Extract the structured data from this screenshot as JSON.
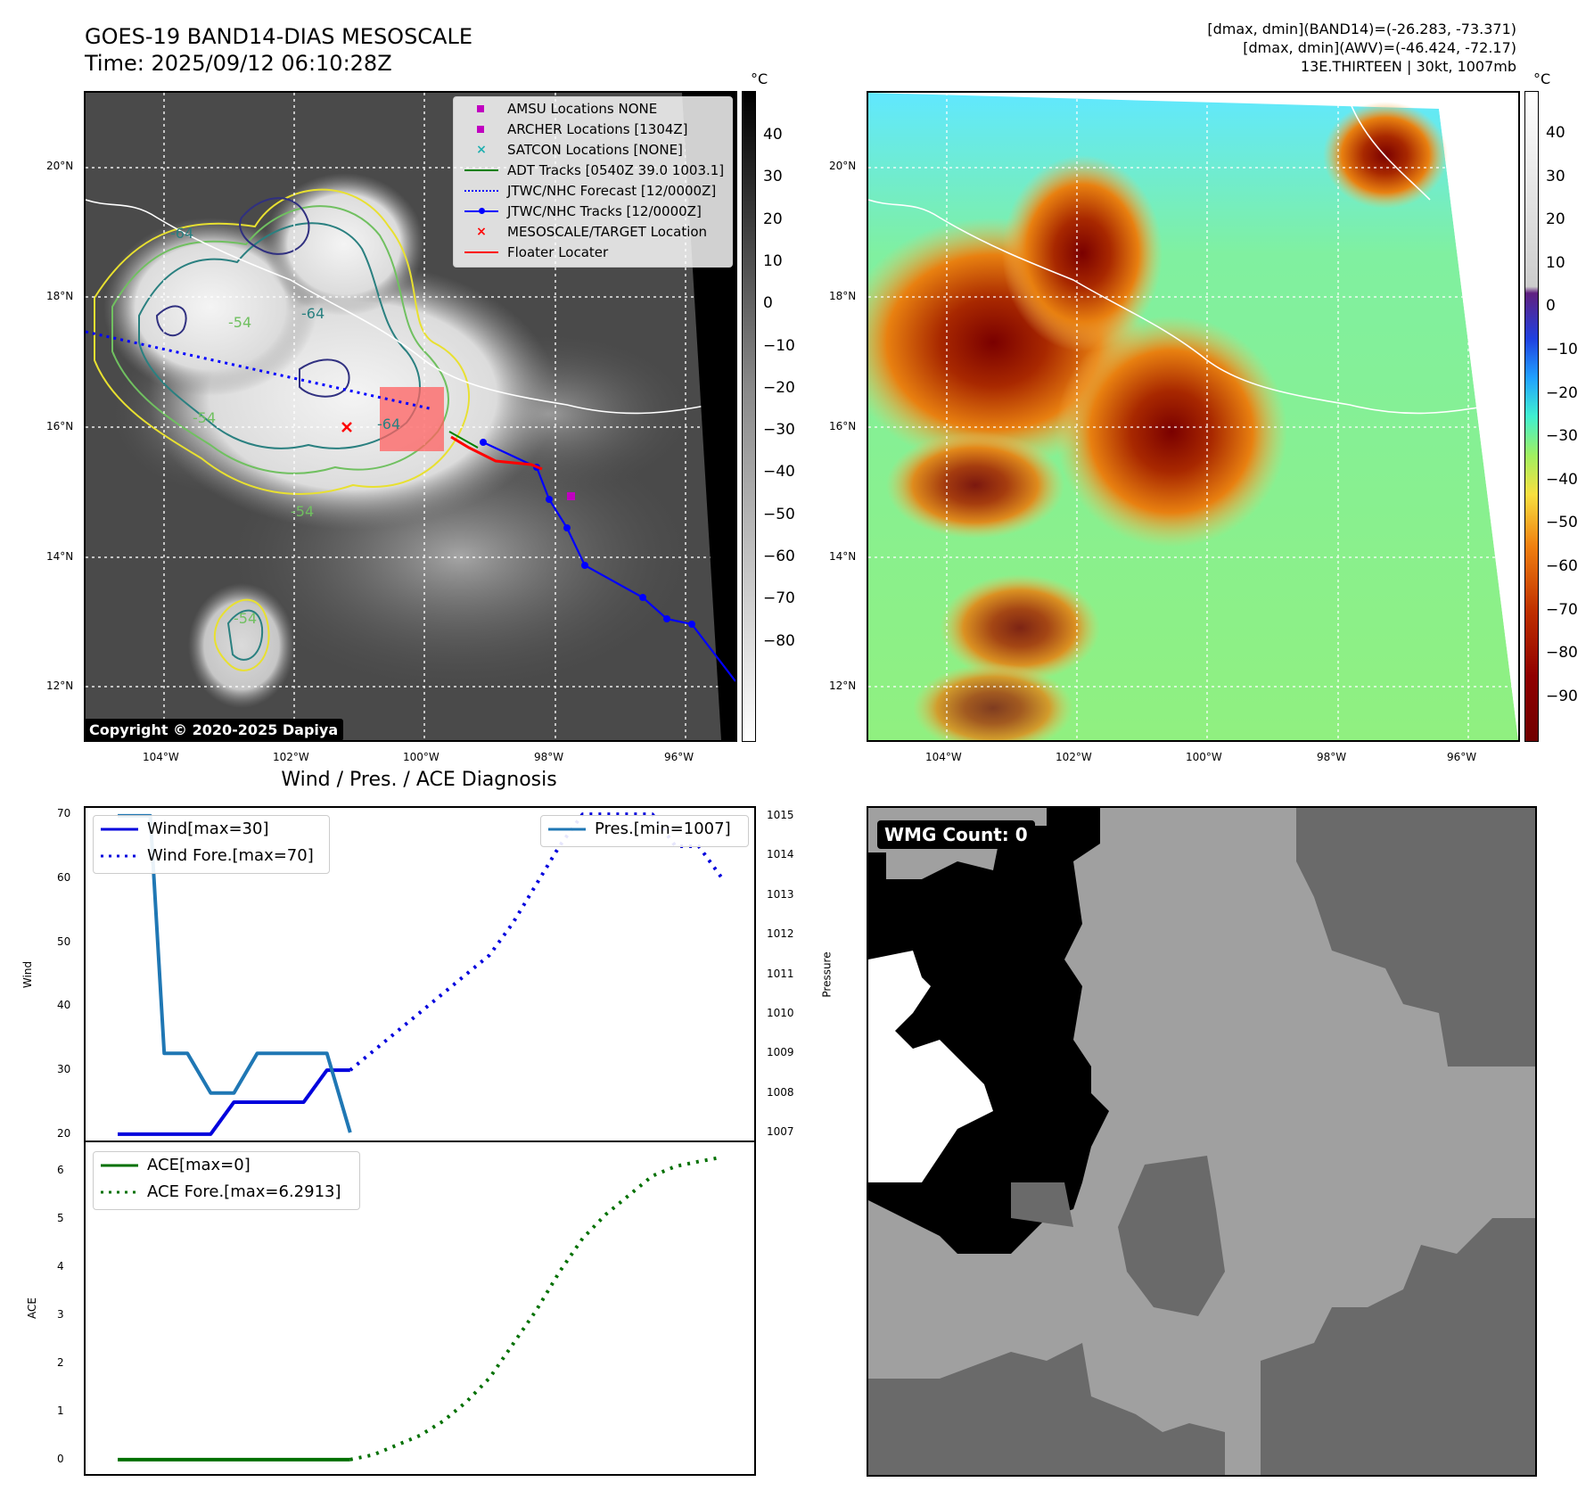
{
  "title": {
    "line1": "GOES-19 BAND14-DIAS MESOSCALE",
    "line2": "Time: 2025/09/12 06:10:28Z"
  },
  "info": {
    "line1": "[dmax, dmin](BAND14)=(-26.283, -73.371)",
    "line2": "[dmax, dmin](AWV)=(-46.424, -72.17)",
    "line3": "13E.THIRTEEN | 30kt, 1007mb"
  },
  "map": {
    "lat_labels": [
      "20°N",
      "18°N",
      "16°N",
      "14°N",
      "12°N"
    ],
    "lon_labels": [
      "104°W",
      "102°W",
      "100°W",
      "98°W",
      "96°W"
    ],
    "contour_labels": [
      "-64",
      "-64",
      "-54",
      "-64",
      "-54",
      "-54",
      "-54"
    ],
    "legend": [
      {
        "label": "AMSU Locations NONE",
        "color": "#c000c0",
        "marker": "square"
      },
      {
        "label": "ARCHER Locations [1304Z]",
        "color": "#c000c0",
        "marker": "square"
      },
      {
        "label": "SATCON Locations [NONE]",
        "color": "#20b0b0",
        "marker": "x"
      },
      {
        "label": "ADT Tracks [0540Z 39.0 1003.1]",
        "color": "#008000",
        "marker": "line"
      },
      {
        "label": "JTWC/NHC Forecast [12/0000Z]",
        "color": "#0000ff",
        "marker": "dotted"
      },
      {
        "label": "JTWC/NHC Tracks [12/0000Z]",
        "color": "#0000ff",
        "marker": "line-dot"
      },
      {
        "label": "MESOSCALE/TARGET Location",
        "color": "#ff0000",
        "marker": "x"
      },
      {
        "label": "Floater Locater",
        "color": "#ff0000",
        "marker": "line"
      }
    ],
    "copyright": "Copyright © 2020-2025 Dapiya"
  },
  "colorbar_gray": {
    "unit": "°C",
    "ticks": [
      "40",
      "30",
      "20",
      "10",
      "0",
      "−10",
      "−20",
      "−30",
      "−40",
      "−50",
      "−60",
      "−70",
      "−80"
    ]
  },
  "colorbar_color": {
    "unit": "°C",
    "ticks": [
      "40",
      "30",
      "20",
      "10",
      "0",
      "−10",
      "−20",
      "−30",
      "−40",
      "−50",
      "−60",
      "−70",
      "−80",
      "−90"
    ]
  },
  "wmg": {
    "label": "WMG Count: 0"
  },
  "chart_data": [
    {
      "type": "line",
      "title": "Wind / Pres. / ACE Diagnosis",
      "ylabel": "Wind",
      "y2label": "Pressure",
      "ylim": [
        19,
        71
      ],
      "y2lim": [
        1006.8,
        1015.2
      ],
      "yticks": [
        20,
        30,
        40,
        50,
        60,
        70
      ],
      "y2ticks": [
        1007,
        1008,
        1009,
        1010,
        1011,
        1012,
        1013,
        1014,
        1015
      ],
      "xlim": [
        0,
        28
      ],
      "series": [
        {
          "name": "Wind[max=30]",
          "axis": "left",
          "color": "#0000dd",
          "style": "solid",
          "x": [
            1,
            2,
            3,
            4,
            5,
            6,
            7,
            8,
            9,
            10,
            11
          ],
          "values": [
            20,
            20,
            20,
            20,
            20,
            25,
            25,
            25,
            25,
            30,
            30
          ]
        },
        {
          "name": "Wind Fore.[max=70]",
          "axis": "left",
          "color": "#0000dd",
          "style": "dotted",
          "x": [
            11,
            12,
            13,
            14,
            15,
            16,
            17,
            18,
            19,
            20,
            21,
            22,
            23,
            24,
            25,
            26,
            27
          ],
          "values": [
            30,
            33,
            36,
            39,
            42,
            45,
            48,
            53,
            59,
            65,
            70,
            70,
            70,
            70,
            65,
            65,
            60
          ]
        },
        {
          "name": "Pres.[min=1007]",
          "axis": "right",
          "color": "#1f77b4",
          "style": "solid",
          "x": [
            1,
            2,
            2.4,
            3,
            4,
            5,
            6,
            7,
            8,
            9,
            9.5,
            10,
            11
          ],
          "values": [
            1015,
            1015,
            1015,
            1009,
            1009,
            1008,
            1008,
            1009,
            1009,
            1009,
            1009,
            1009,
            1007
          ]
        }
      ]
    },
    {
      "type": "line",
      "ylabel": "ACE",
      "ylim": [
        -0.3,
        6.6
      ],
      "yticks": [
        0,
        1,
        2,
        3,
        4,
        5,
        6
      ],
      "xlim": [
        0,
        28
      ],
      "series": [
        {
          "name": "ACE[max=0]",
          "color": "#007000",
          "style": "solid",
          "x": [
            1,
            2,
            3,
            4,
            5,
            6,
            7,
            8,
            9,
            10,
            11
          ],
          "values": [
            0,
            0,
            0,
            0,
            0,
            0,
            0,
            0,
            0,
            0,
            0
          ]
        },
        {
          "name": "ACE Fore.[max=6.2913]",
          "color": "#007000",
          "style": "dotted",
          "x": [
            11,
            12,
            13,
            14,
            15,
            16,
            17,
            18,
            19,
            20,
            21,
            22,
            23,
            24,
            25,
            26,
            27
          ],
          "values": [
            0,
            0.1,
            0.3,
            0.5,
            0.8,
            1.2,
            1.7,
            2.4,
            3.1,
            3.9,
            4.6,
            5.1,
            5.5,
            5.9,
            6.1,
            6.2,
            6.29
          ]
        }
      ]
    }
  ]
}
